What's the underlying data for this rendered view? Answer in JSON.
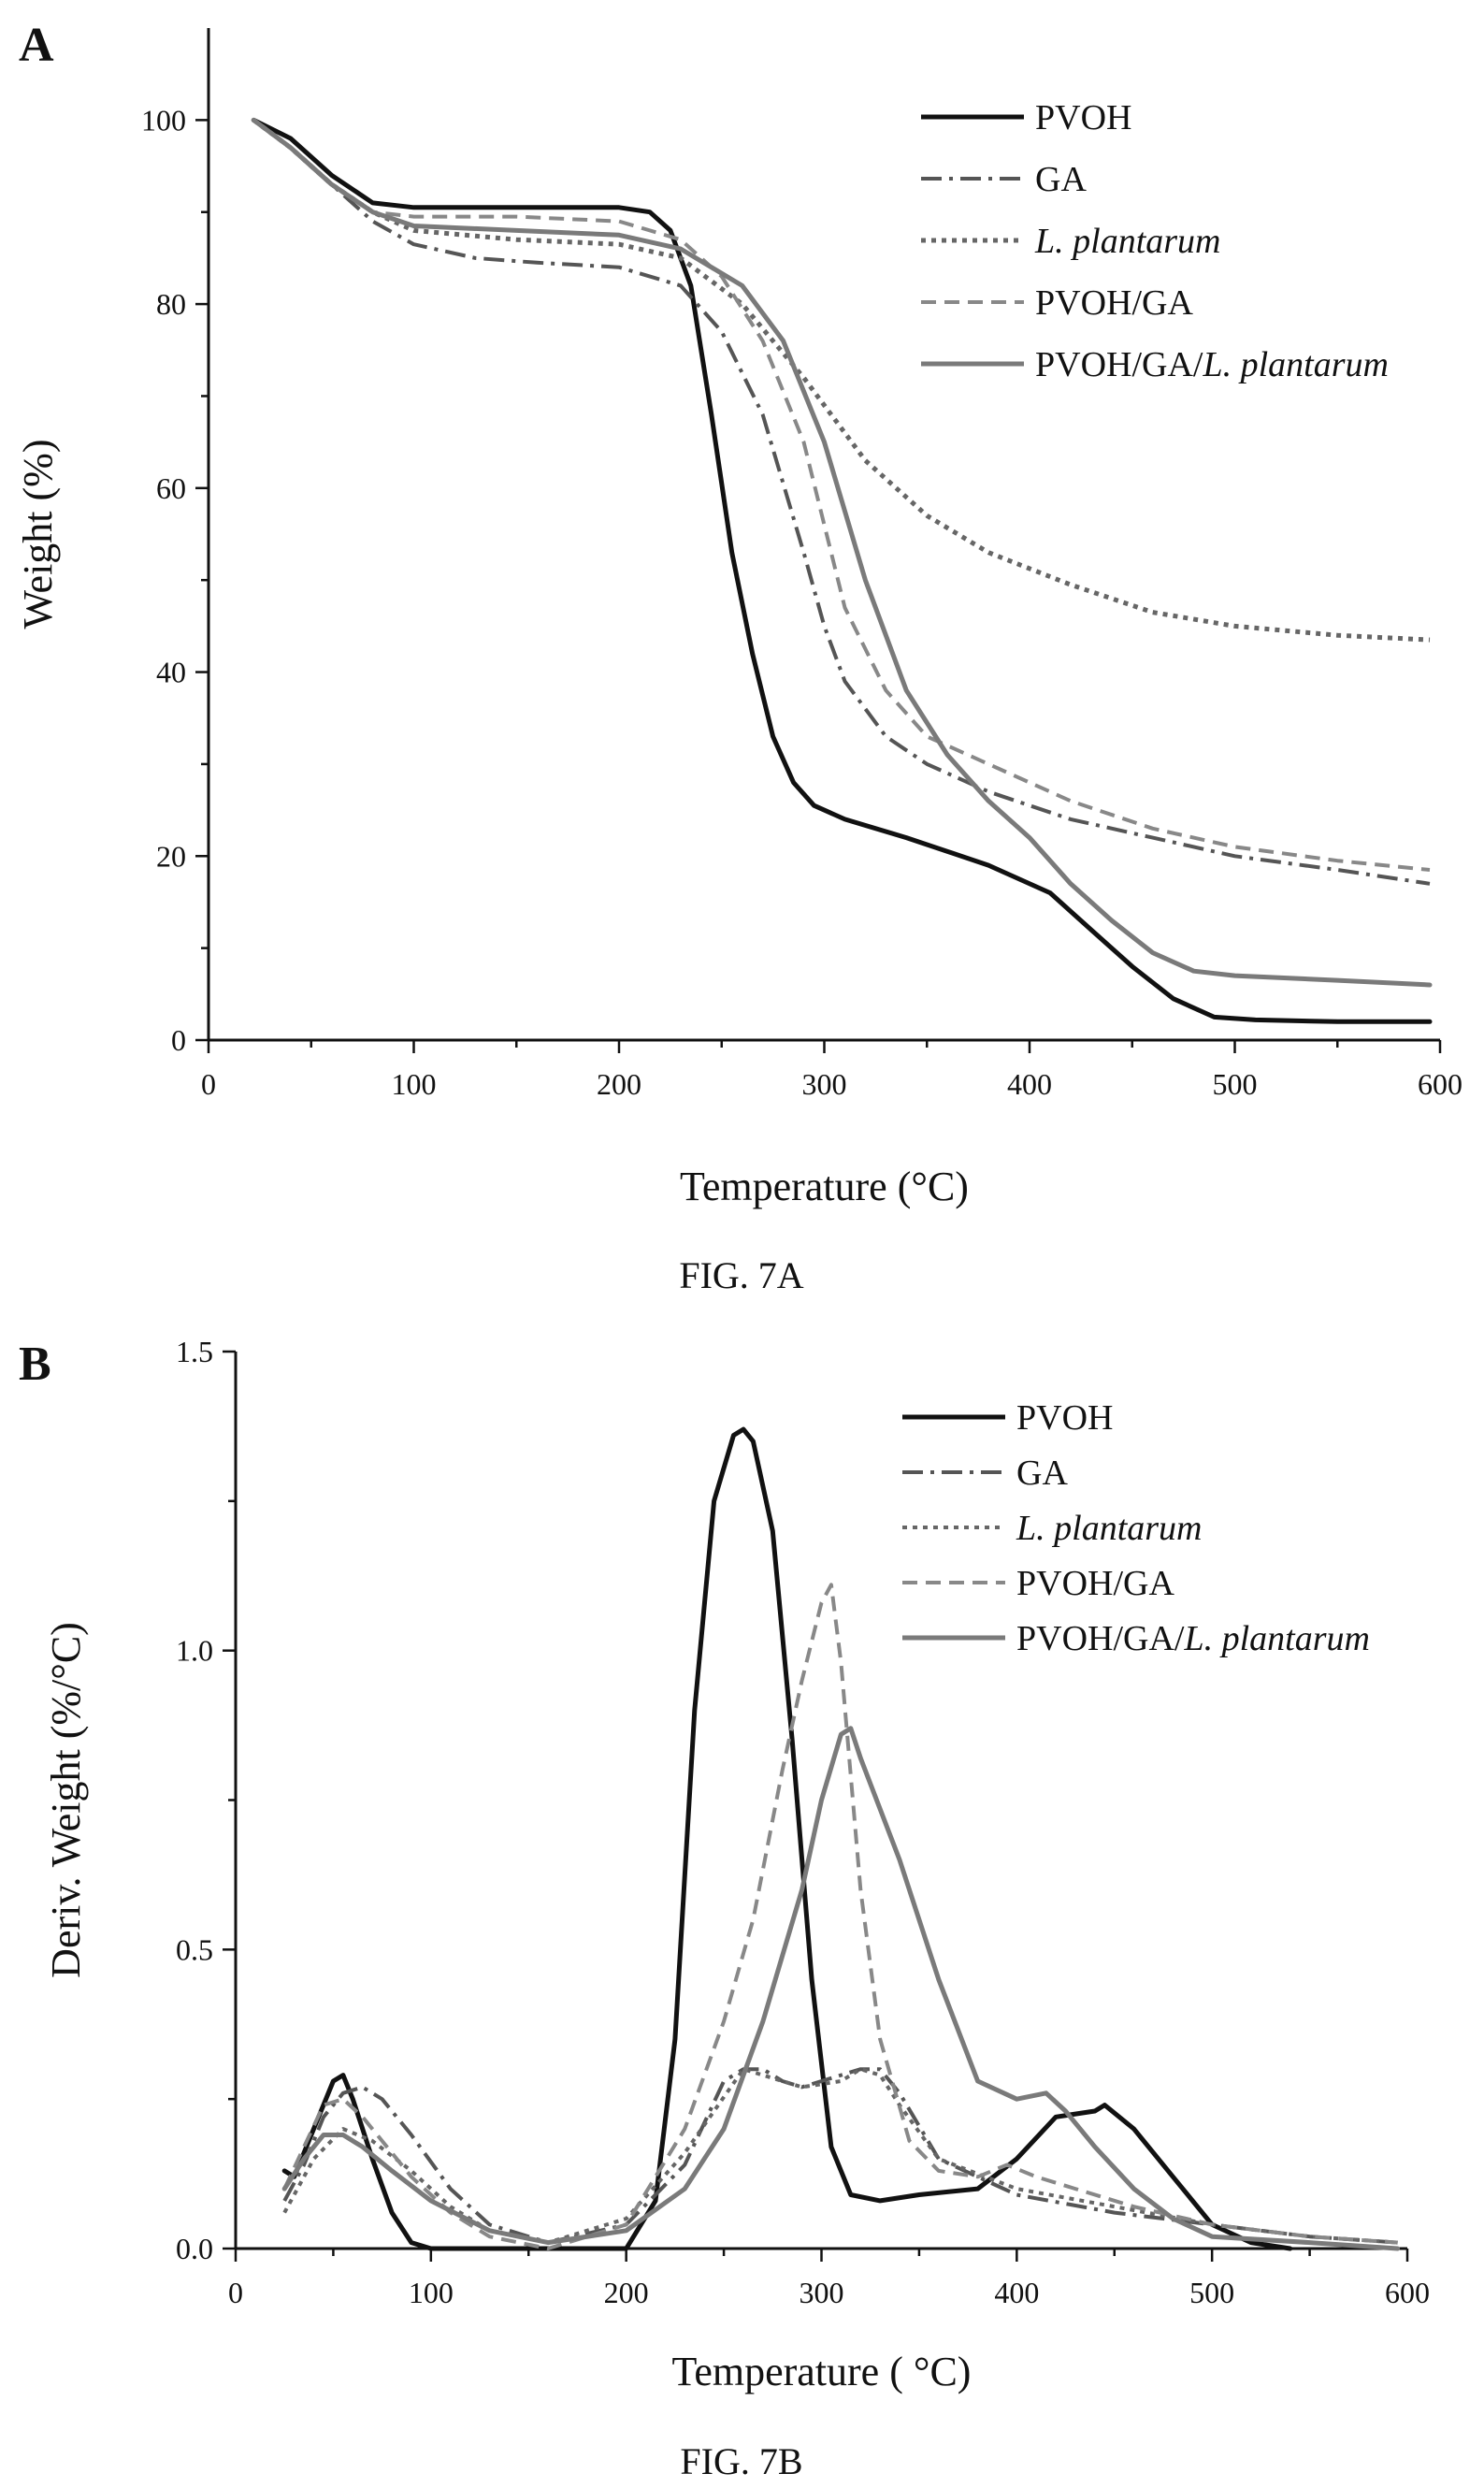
{
  "chart_data": [
    {
      "panel": "A",
      "caption": "FIG. 7A",
      "type": "line",
      "xlabel": "Temperature (°C)",
      "ylabel": "Weight (%)",
      "xlim": [
        0,
        600
      ],
      "ylim": [
        0,
        110
      ],
      "xticks": [
        0,
        100,
        200,
        300,
        400,
        500,
        600
      ],
      "yticks": [
        0,
        20,
        40,
        60,
        80,
        100
      ],
      "legend_position": "top-right",
      "grid": false,
      "series": [
        {
          "name": "PVOH",
          "style": "solid",
          "color": "#111111",
          "width": 5,
          "x": [
            22,
            40,
            60,
            80,
            100,
            150,
            200,
            215,
            225,
            235,
            245,
            255,
            265,
            275,
            285,
            295,
            310,
            340,
            380,
            410,
            430,
            450,
            470,
            490,
            510,
            550,
            595
          ],
          "y": [
            100,
            98,
            94,
            91,
            90.5,
            90.5,
            90.5,
            90,
            88,
            82,
            68,
            53,
            42,
            33,
            28,
            25.5,
            24,
            22,
            19,
            16,
            12,
            8,
            4.5,
            2.5,
            2.2,
            2,
            2
          ]
        },
        {
          "name": "GA",
          "style": "dashdot",
          "color": "#555555",
          "width": 4,
          "x": [
            22,
            40,
            60,
            80,
            100,
            130,
            160,
            200,
            230,
            250,
            270,
            290,
            300,
            310,
            330,
            350,
            380,
            420,
            460,
            500,
            550,
            595
          ],
          "y": [
            100,
            97,
            93,
            89,
            86.5,
            85,
            84.5,
            84,
            82,
            77,
            68,
            53,
            45,
            39,
            33,
            30,
            27,
            24,
            22,
            20,
            18.5,
            17
          ]
        },
        {
          "name": "L. plantarum",
          "style": "dotted",
          "color": "#666666",
          "width": 5,
          "x": [
            22,
            40,
            60,
            80,
            100,
            150,
            200,
            230,
            260,
            290,
            320,
            350,
            380,
            420,
            460,
            500,
            550,
            595
          ],
          "y": [
            100,
            97,
            93,
            90,
            88,
            87,
            86.5,
            85,
            80,
            72,
            63,
            57,
            53,
            49.5,
            46.5,
            45,
            44,
            43.5
          ]
        },
        {
          "name": "PVOH/GA",
          "style": "dashed",
          "color": "#888888",
          "width": 4,
          "x": [
            22,
            40,
            60,
            80,
            100,
            150,
            200,
            230,
            250,
            270,
            290,
            300,
            310,
            330,
            350,
            380,
            420,
            460,
            500,
            550,
            595
          ],
          "y": [
            100,
            97,
            93,
            90,
            89.5,
            89.5,
            89,
            87,
            83,
            76,
            65,
            56,
            47,
            38,
            33,
            30,
            26,
            23,
            21,
            19.5,
            18.5
          ]
        },
        {
          "name": "PVOH/GA/L. plantarum",
          "style": "solid",
          "color": "#7a7a7a",
          "width": 5,
          "x": [
            22,
            40,
            60,
            80,
            100,
            150,
            200,
            230,
            260,
            280,
            300,
            320,
            340,
            360,
            380,
            400,
            420,
            440,
            460,
            480,
            500,
            550,
            595
          ],
          "y": [
            100,
            97,
            93,
            90,
            88.5,
            88,
            87.5,
            86,
            82,
            76,
            65,
            50,
            38,
            31,
            26,
            22,
            17,
            13,
            9.5,
            7.5,
            7,
            6.5,
            6
          ]
        }
      ]
    },
    {
      "panel": "B",
      "caption": "FIG. 7B",
      "type": "line",
      "xlabel": "Temperature ( °C)",
      "ylabel": "Deriv. Weight (%/°C)",
      "xlim": [
        0,
        600
      ],
      "ylim": [
        0,
        1.5
      ],
      "xticks": [
        0,
        100,
        200,
        300,
        400,
        500,
        600
      ],
      "yticks": [
        0.0,
        0.5,
        1.0,
        1.5
      ],
      "ytick_labels": [
        "0.0",
        "0.5",
        "1.0",
        "1.5"
      ],
      "legend_position": "top-right",
      "grid": false,
      "series": [
        {
          "name": "PVOH",
          "style": "solid",
          "color": "#111111",
          "width": 5,
          "x": [
            25,
            30,
            40,
            50,
            55,
            60,
            70,
            80,
            90,
            100,
            150,
            200,
            215,
            225,
            235,
            245,
            255,
            260,
            265,
            275,
            285,
            295,
            305,
            315,
            330,
            350,
            380,
            400,
            420,
            440,
            445,
            460,
            480,
            500,
            520,
            540
          ],
          "y": [
            0.13,
            0.12,
            0.2,
            0.28,
            0.29,
            0.25,
            0.15,
            0.06,
            0.01,
            0,
            0,
            0,
            0.08,
            0.35,
            0.9,
            1.25,
            1.36,
            1.37,
            1.35,
            1.2,
            0.85,
            0.45,
            0.17,
            0.09,
            0.08,
            0.09,
            0.1,
            0.15,
            0.22,
            0.23,
            0.24,
            0.2,
            0.12,
            0.04,
            0.01,
            0
          ]
        },
        {
          "name": "GA",
          "style": "dashdot",
          "color": "#555555",
          "width": 4,
          "x": [
            25,
            35,
            45,
            55,
            65,
            75,
            90,
            110,
            130,
            160,
            200,
            230,
            250,
            260,
            270,
            280,
            290,
            300,
            310,
            320,
            330,
            340,
            360,
            400,
            450,
            500,
            550,
            595
          ],
          "y": [
            0.08,
            0.14,
            0.22,
            0.26,
            0.27,
            0.25,
            0.19,
            0.1,
            0.04,
            0.01,
            0.04,
            0.14,
            0.28,
            0.3,
            0.3,
            0.28,
            0.27,
            0.28,
            0.29,
            0.3,
            0.3,
            0.26,
            0.15,
            0.09,
            0.06,
            0.04,
            0.02,
            0.01
          ]
        },
        {
          "name": "L. plantarum",
          "style": "dotted",
          "color": "#666666",
          "width": 4,
          "x": [
            25,
            40,
            55,
            70,
            90,
            110,
            130,
            160,
            200,
            230,
            260,
            290,
            310,
            320,
            330,
            340,
            360,
            400,
            450,
            500,
            550,
            595
          ],
          "y": [
            0.06,
            0.15,
            0.2,
            0.18,
            0.13,
            0.07,
            0.03,
            0.01,
            0.05,
            0.16,
            0.3,
            0.27,
            0.28,
            0.3,
            0.29,
            0.24,
            0.15,
            0.1,
            0.07,
            0.04,
            0.02,
            0.01
          ]
        },
        {
          "name": "PVOH/GA",
          "style": "dashed",
          "color": "#888888",
          "width": 4,
          "x": [
            25,
            35,
            45,
            55,
            65,
            75,
            90,
            110,
            130,
            160,
            200,
            230,
            250,
            265,
            280,
            290,
            300,
            305,
            310,
            320,
            330,
            345,
            360,
            380,
            395,
            410,
            430,
            460,
            500,
            550,
            595
          ],
          "y": [
            0.1,
            0.17,
            0.24,
            0.25,
            0.22,
            0.18,
            0.12,
            0.06,
            0.02,
            0,
            0.04,
            0.2,
            0.38,
            0.55,
            0.8,
            0.95,
            1.08,
            1.11,
            0.98,
            0.6,
            0.35,
            0.18,
            0.13,
            0.12,
            0.14,
            0.12,
            0.1,
            0.07,
            0.04,
            0.02,
            0.01
          ]
        },
        {
          "name": "PVOH/GA/L. plantarum",
          "style": "solid",
          "color": "#7a7a7a",
          "width": 5,
          "x": [
            25,
            35,
            45,
            55,
            65,
            80,
            100,
            130,
            160,
            200,
            230,
            250,
            270,
            290,
            300,
            310,
            315,
            320,
            340,
            360,
            380,
            400,
            415,
            425,
            440,
            460,
            480,
            500,
            550,
            595
          ],
          "y": [
            0.1,
            0.15,
            0.19,
            0.19,
            0.17,
            0.13,
            0.08,
            0.03,
            0.01,
            0.03,
            0.1,
            0.2,
            0.38,
            0.6,
            0.75,
            0.86,
            0.87,
            0.82,
            0.65,
            0.45,
            0.28,
            0.25,
            0.26,
            0.23,
            0.17,
            0.1,
            0.05,
            0.02,
            0.01,
            0
          ]
        }
      ]
    }
  ]
}
